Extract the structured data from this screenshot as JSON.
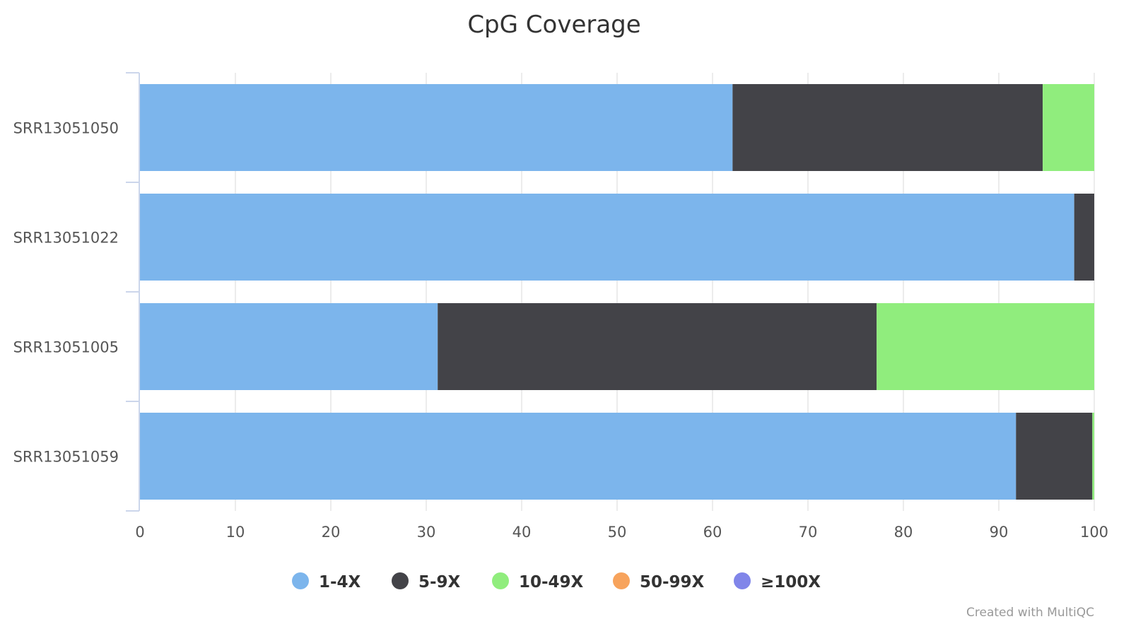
{
  "chart_data": {
    "type": "bar",
    "orientation": "horizontal",
    "stacked": true,
    "title": "CpG Coverage",
    "categories": [
      "SRR13051050",
      "SRR13051022",
      "SRR13051005",
      "SRR13051059"
    ],
    "series": [
      {
        "name": "1-4X",
        "color": "#7cb5ec",
        "values": [
          62.1,
          97.9,
          31.2,
          91.8
        ]
      },
      {
        "name": "5-9X",
        "color": "#434348",
        "values": [
          32.5,
          2.1,
          46.0,
          8.0
        ]
      },
      {
        "name": "10-49X",
        "color": "#90ed7d",
        "values": [
          5.4,
          0.0,
          22.8,
          0.2
        ]
      },
      {
        "name": "50-99X",
        "color": "#f7a35c",
        "values": [
          0.0,
          0.0,
          0.0,
          0.0
        ]
      },
      {
        "name": "≥100X",
        "color": "#8085e9",
        "values": [
          0.0,
          0.0,
          0.0,
          0.0
        ]
      }
    ],
    "x_ticks": [
      "0",
      "10",
      "20",
      "30",
      "40",
      "50",
      "60",
      "70",
      "80",
      "90",
      "100"
    ],
    "xlim": [
      0,
      100
    ],
    "grid": true,
    "legend_position": "bottom-center"
  },
  "credit": "Created with MultiQC"
}
